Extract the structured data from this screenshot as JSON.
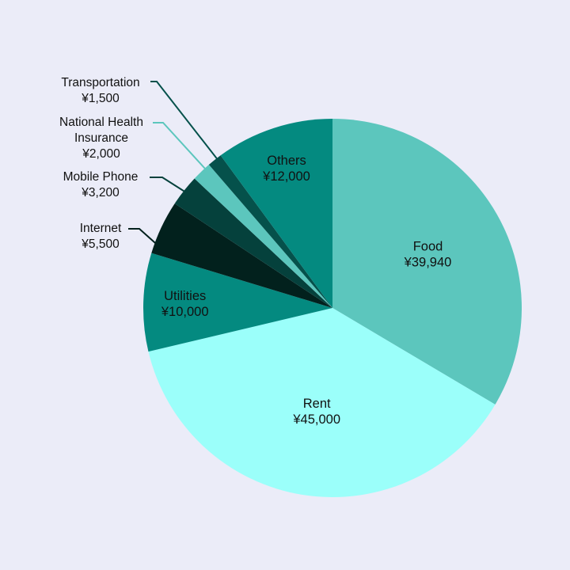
{
  "chart_data": {
    "type": "pie",
    "currency": "¥",
    "slices": [
      {
        "label": "Food",
        "value": 39940,
        "value_label": "¥39,940",
        "color": "#5cc6bd"
      },
      {
        "label": "Rent",
        "value": 45000,
        "value_label": "¥45,000",
        "color": "#9bfffa"
      },
      {
        "label": "Utilities",
        "value": 10000,
        "value_label": "¥10,000",
        "color": "#048a80"
      },
      {
        "label": "Internet",
        "value": 5500,
        "value_label": "¥5,500",
        "color": "#02211d"
      },
      {
        "label": "Mobile Phone",
        "value": 3200,
        "value_label": "¥3,200",
        "color": "#05413c"
      },
      {
        "label": "National Health Insurance",
        "label_lines": [
          "National Health",
          "Insurance"
        ],
        "value": 2000,
        "value_label": "¥2,000",
        "color": "#5cc6bd"
      },
      {
        "label": "Transportation",
        "value": 1500,
        "value_label": "¥1,500",
        "color": "#05514b"
      },
      {
        "label": "Others",
        "value": 12000,
        "value_label": "¥12,000",
        "color": "#048a80"
      }
    ],
    "start_angle": "12 o'clock",
    "direction": "clockwise",
    "legend": "none",
    "labels": "inside for large slices, outside with leader lines for small slices"
  }
}
